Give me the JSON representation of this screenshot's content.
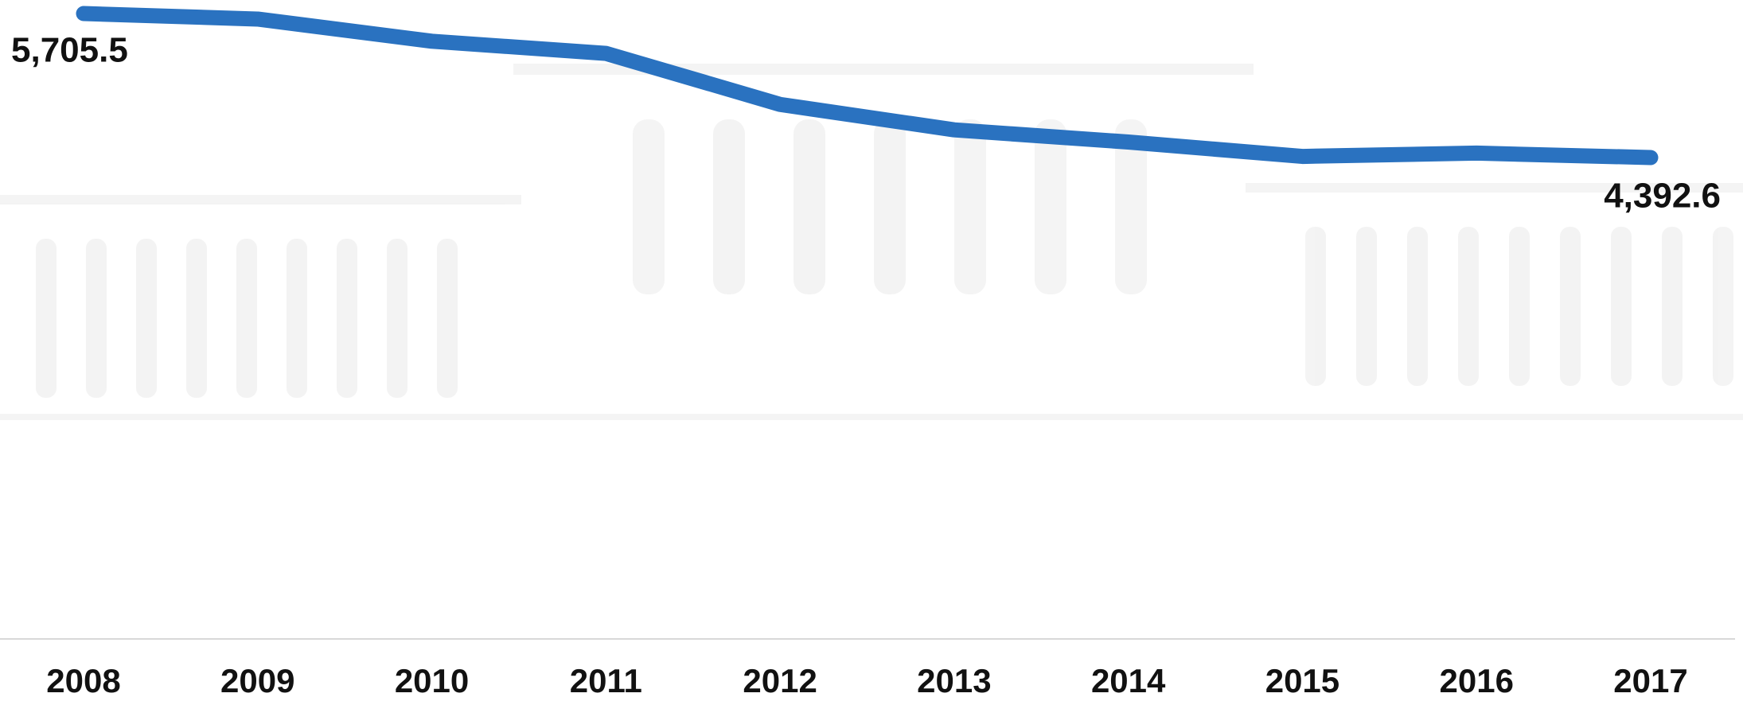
{
  "chart_data": {
    "type": "line",
    "categories": [
      "2008",
      "2009",
      "2010",
      "2011",
      "2012",
      "2013",
      "2014",
      "2015",
      "2016",
      "2017"
    ],
    "values": [
      5705.5,
      5655,
      5453,
      5342,
      4877,
      4645,
      4534,
      4403,
      4433,
      4392.6
    ],
    "value_labels": [
      "5,705.5",
      null,
      null,
      null,
      null,
      null,
      null,
      null,
      null,
      "4,392.6"
    ],
    "color": "#2a72c0"
  }
}
